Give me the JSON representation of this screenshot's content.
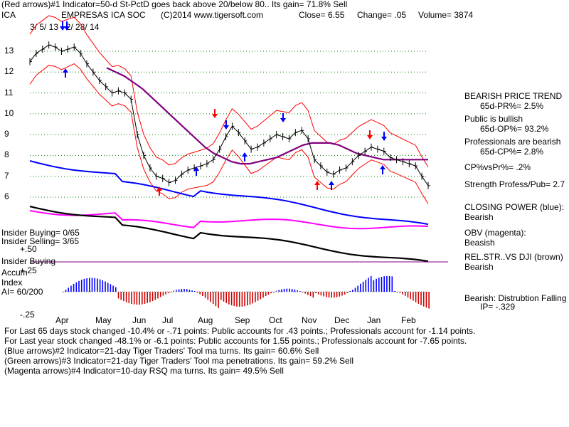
{
  "header": {
    "line1": "(Red arrows)#1 Indicator=50-d St-PctD goes back above 20/below 80..  Its gain= 71.8% Sell",
    "ticker": "ICA",
    "company": "EMPRESAS ICA SOC",
    "copyright": "(C)2014 www.tigersoft.com",
    "close": "Close=   6.55",
    "change": "Change= .05",
    "volume": "Volume=  3874",
    "date_range": "3/ 5/ 13 - 2/ 28/ 14"
  },
  "right_panel": {
    "l1": "BEARISH PRICE TREND",
    "l2": "65d-PR%= 2.5%",
    "l3": "Public is bullish",
    "l4": "65d-OP%= 93.2%",
    "l5": "Professionals are bearish",
    "l6": "65d-CP%= 2.8%",
    "l7": "CP%vsPr%=  .2%",
    "l8": "Strength Profess/Pub= 2.7",
    "l9": "CLOSING POWER (blue):",
    "l10": "Bearish",
    "l11": "OBV (magenta):",
    "l12": "Beasish",
    "l13": "REL.STR..VS DJI (brown)",
    "l14": "Bearish",
    "l15": "Bearish:  Distrubtion Falling",
    "l16": "IP= -.329"
  },
  "left_notes": {
    "insider_buying_count": "Insider Buying= 0/65",
    "insider_selling_count": "Insider Selling= 3/65",
    "plus50": "+.50",
    "insider_buying": "Insider Buying",
    "accum": "Accum",
    "plus25": "+.25",
    "index": "Index",
    "ai": "AI= 60/200",
    "minus25": "-.25"
  },
  "footer": {
    "l1": "For Last 65 days stock changed -10.4% or -.71 points:  Public accounts for  .43 points.;  Professionals account for -1.14 points.",
    "l2": "For Last year stock changed -48.1% or -6.1 points:  Public accounts for  1.55 points.;  Professionals account for -7.65 points.",
    "l3": "(Blue arrows)#2 Indicator=21-day Tiger Traders' Tool ma turns. Its gain= 60.6% Sell",
    "l4": "(Green arrows)#3 Indicator=21-day Tiger Traders' Tool ma penetrations. Its gain= 59.2% Sell",
    "l5": "(Magenta arrows)#4 Indicator=10-day RSQ ma turns. Its gain= 49.5% Sell"
  },
  "colors": {
    "price": "#000000",
    "bands": "#ff0000",
    "ma": "#800080",
    "closing_power": "#0000ff",
    "obv": "#ff00ff",
    "relstr": "#000000",
    "accum_pos": "#0000ff",
    "accum_neg": "#cc0000",
    "grid": "#008000"
  },
  "chart_data": {
    "type": "line",
    "yticks": [
      "13",
      "12",
      "11",
      "10",
      "9",
      "8",
      "7",
      "6"
    ],
    "ylim": [
      6,
      13
    ],
    "months": [
      "Apr",
      "May",
      "Jun",
      "Jul",
      "Aug",
      "Sep",
      "Oct",
      "Nov",
      "Dec",
      "Jan",
      "Feb"
    ],
    "series": [
      {
        "values": [
          12.5,
          12.9,
          13.1,
          13.3,
          13.2,
          13.0,
          13.1,
          13.2,
          12.9,
          12.4,
          12.0,
          11.6,
          11.3,
          11.0,
          11.1,
          11.0,
          10.7,
          9.0,
          8.0,
          7.4,
          7.0,
          6.9,
          6.7,
          6.8,
          7.1,
          7.3,
          7.4,
          7.5,
          7.6,
          7.8,
          8.3,
          8.9,
          9.4,
          9.1,
          8.7,
          8.3,
          8.4,
          8.6,
          8.8,
          9.0,
          8.9,
          8.8,
          9.1,
          9.2,
          8.8,
          7.8,
          7.5,
          7.2,
          7.1,
          7.3,
          7.4,
          7.7,
          8.0,
          8.2,
          8.4,
          8.3,
          8.2,
          7.9,
          7.8,
          7.7,
          7.6,
          7.5,
          7.0,
          6.55
        ]
      },
      {
        "values": [
          12.2,
          12.0,
          11.8,
          11.5,
          11.2,
          10.8,
          10.4,
          10.0,
          9.6,
          9.2,
          8.8,
          8.4,
          8.1,
          7.9,
          7.7,
          7.6,
          7.6,
          7.7,
          7.8,
          7.9,
          8.1,
          8.3,
          8.5,
          8.6,
          8.6,
          8.6,
          8.5,
          8.3,
          8.1,
          8.0,
          7.9,
          7.8,
          7.8,
          7.8,
          7.8,
          7.8,
          7.8
        ]
      }
    ]
  }
}
